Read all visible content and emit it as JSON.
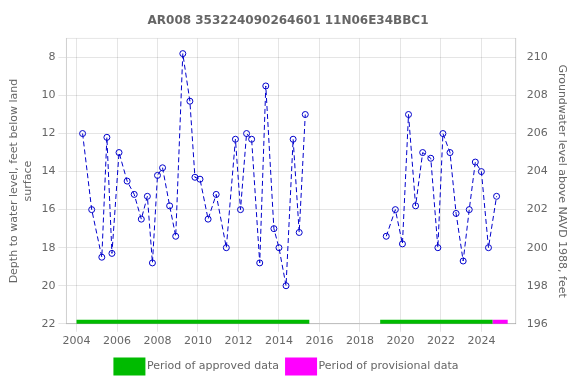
{
  "chart_data": {
    "type": "line",
    "title": "AR008 353224090264601 11N06E34BBC1",
    "ylabel": "Depth to water level, feet below land\nsurface",
    "y2label": "Groundwater level above NAVD 1988, feet",
    "ylim": [
      22,
      7
    ],
    "yticks": [
      8,
      10,
      12,
      14,
      16,
      18,
      20,
      22
    ],
    "y2lim": [
      196,
      211
    ],
    "y2ticks": [
      196,
      198,
      200,
      202,
      204,
      206,
      208,
      210
    ],
    "xlim": [
      2003.5,
      2025.7
    ],
    "xticks": [
      2004,
      2006,
      2008,
      2010,
      2012,
      2014,
      2016,
      2018,
      2020,
      2022,
      2024
    ],
    "grid": true,
    "legend": "bottom",
    "series": [
      {
        "x": [
          2004.3,
          2004.75,
          2005.25,
          2005.5,
          2005.75,
          2006.1,
          2006.5,
          2006.85,
          2007.2,
          2007.5,
          2007.75,
          2008.0,
          2008.25,
          2008.6,
          2008.9,
          2009.25,
          2009.6,
          2009.85,
          2010.1,
          2010.5,
          2010.9,
          2011.4,
          2011.85,
          2012.1,
          2012.4,
          2012.65,
          2013.05,
          2013.35,
          2013.75,
          2014.0,
          2014.35,
          2014.7,
          2015.0,
          2015.3
        ],
        "values": [
          12.0,
          16.0,
          18.5,
          12.2,
          18.3,
          13.0,
          14.5,
          15.2,
          16.5,
          15.3,
          18.8,
          14.2,
          13.8,
          15.8,
          17.4,
          7.8,
          10.3,
          14.3,
          14.4,
          16.5,
          15.2,
          18.0,
          12.3,
          16.0,
          12.0,
          12.3,
          18.8,
          9.5,
          17.0,
          18.0,
          20.0,
          12.3,
          17.2,
          11.0
        ],
        "color": "#0000cc",
        "line_style": "dashed",
        "marker": "open circle"
      },
      {
        "x": [
          2019.3,
          2019.75,
          2020.1,
          2020.4,
          2020.75,
          2021.1,
          2021.5,
          2021.85,
          2022.1,
          2022.45,
          2022.75,
          2023.1,
          2023.4,
          2023.7,
          2024.0,
          2024.35,
          2024.75
        ],
        "values": [
          17.4,
          16.0,
          17.8,
          11.0,
          15.8,
          13.0,
          13.3,
          18.0,
          12.0,
          13.0,
          16.2,
          18.7,
          16.0,
          13.5,
          14.0,
          18.0,
          15.3
        ],
        "color": "#0000cc",
        "line_style": "dashed",
        "marker": "open circle"
      }
    ],
    "periods": [
      {
        "name": "Period of approved data",
        "color": "#00bb00",
        "ranges": [
          [
            2004.0,
            2015.5
          ],
          [
            2019.0,
            2024.55
          ]
        ]
      },
      {
        "name": "Period of provisional data",
        "color": "#ff00ff",
        "ranges": [
          [
            2024.55,
            2025.3
          ]
        ]
      }
    ]
  }
}
